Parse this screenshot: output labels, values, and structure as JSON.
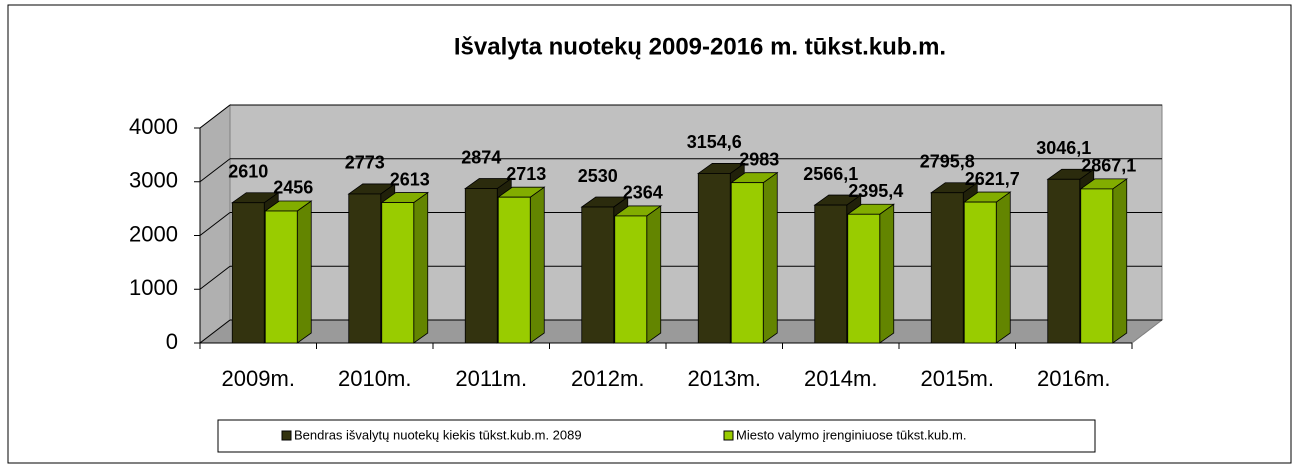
{
  "chart_data": {
    "type": "bar3d",
    "title": "Išvalyta nuotekų 2009-2016 m. tūkst.kub.m.",
    "categories": [
      "2009m.",
      "2010m.",
      "2011m.",
      "2012m.",
      "2013m.",
      "2014m.",
      "2015m.",
      "2016m."
    ],
    "series": [
      {
        "name": "Bendras išvalytų nuotekų kiekis tūkst.kub.m. 2089",
        "color": "#33330f",
        "values": [
          2610,
          2773,
          2874,
          2530,
          3154.6,
          2566.1,
          2795.8,
          3046.1
        ],
        "value_labels": [
          "2610",
          "2773",
          "2874",
          "2530",
          "3154,6",
          "2566,1",
          "2795,8",
          "3046,1"
        ]
      },
      {
        "name": "Miesto valymo įrenginiuose tūkst.kub.m.",
        "color": "#99cc00",
        "values": [
          2456,
          2613,
          2713,
          2364,
          2983,
          2395.4,
          2621.7,
          2867.1
        ],
        "value_labels": [
          "2456",
          "2613",
          "2713",
          "2364",
          "2983",
          "2395,4",
          "2621,7",
          "2867,1"
        ]
      }
    ],
    "ylim": [
      0,
      4000
    ],
    "yticks": [
      0,
      1000,
      2000,
      3000,
      4000
    ],
    "grid": true,
    "legend": "bottom"
  }
}
